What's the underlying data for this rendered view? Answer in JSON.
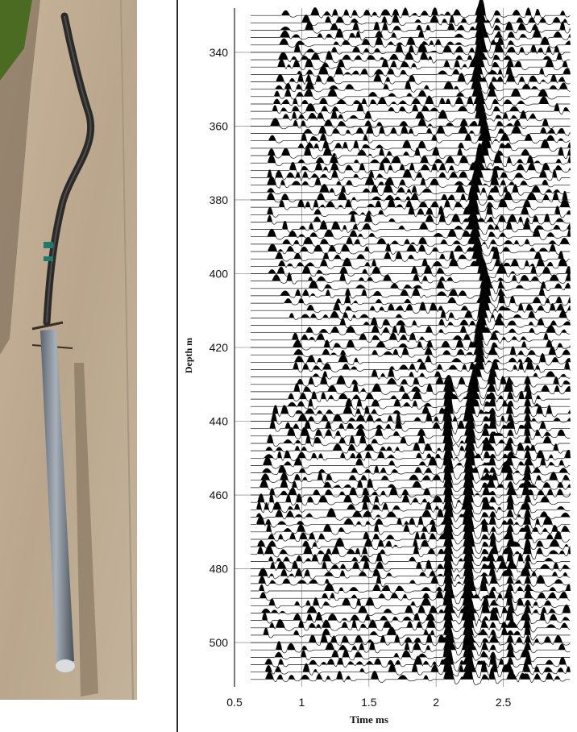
{
  "photo": {
    "description_icon": "logging-tool-photo"
  },
  "chart_data": {
    "type": "wiggle-trace",
    "title": "",
    "xlabel": "Time ms",
    "ylabel": "Depth m",
    "xlim": [
      0.5,
      3.0
    ],
    "ylim": [
      328,
      512
    ],
    "xticks": [
      "0.5",
      "1",
      "1.5",
      "2",
      "2.5"
    ],
    "yticks": [
      "340",
      "360",
      "380",
      "400",
      "420",
      "440",
      "460",
      "480",
      "500"
    ],
    "grid": true,
    "trace_depth_start": 330,
    "trace_depth_end": 510,
    "trace_spacing": 2,
    "fill": "positive-lobes-black",
    "first_arrival": [
      {
        "depth": 330,
        "time": 2.33
      },
      {
        "depth": 340,
        "time": 2.33
      },
      {
        "depth": 350,
        "time": 2.3
      },
      {
        "depth": 355,
        "time": 2.32
      },
      {
        "depth": 360,
        "time": 2.35
      },
      {
        "depth": 365,
        "time": 2.38
      },
      {
        "depth": 370,
        "time": 2.33
      },
      {
        "depth": 375,
        "time": 2.31
      },
      {
        "depth": 380,
        "time": 2.28
      },
      {
        "depth": 385,
        "time": 2.27
      },
      {
        "depth": 390,
        "time": 2.29
      },
      {
        "depth": 395,
        "time": 2.31
      },
      {
        "depth": 400,
        "time": 2.35
      },
      {
        "depth": 405,
        "time": 2.37
      },
      {
        "depth": 410,
        "time": 2.36
      },
      {
        "depth": 415,
        "time": 2.33
      },
      {
        "depth": 420,
        "time": 2.31
      },
      {
        "depth": 425,
        "time": 2.33
      },
      {
        "depth": 430,
        "time": 2.28
      },
      {
        "depth": 435,
        "time": 2.26
      },
      {
        "depth": 440,
        "time": 2.25
      },
      {
        "depth": 450,
        "time": 2.25
      },
      {
        "depth": 460,
        "time": 2.24
      },
      {
        "depth": 470,
        "time": 2.24
      },
      {
        "depth": 480,
        "time": 2.24
      },
      {
        "depth": 490,
        "time": 2.24
      },
      {
        "depth": 500,
        "time": 2.24
      },
      {
        "depth": 510,
        "time": 2.24
      }
    ],
    "strong_band": {
      "time_start": 2.05,
      "time_end": 2.13,
      "depth_from": 430
    },
    "noise_onset": [
      {
        "depth": 330,
        "time": 0.85
      },
      {
        "depth": 345,
        "time": 0.82
      },
      {
        "depth": 365,
        "time": 0.75
      },
      {
        "depth": 380,
        "time": 0.74
      },
      {
        "depth": 400,
        "time": 0.75
      },
      {
        "depth": 410,
        "time": 0.9
      },
      {
        "depth": 425,
        "time": 0.95
      },
      {
        "depth": 435,
        "time": 0.8
      },
      {
        "depth": 450,
        "time": 0.72
      },
      {
        "depth": 465,
        "time": 0.66
      },
      {
        "depth": 485,
        "time": 0.68
      },
      {
        "depth": 500,
        "time": 0.72
      },
      {
        "depth": 510,
        "time": 0.73
      }
    ]
  }
}
